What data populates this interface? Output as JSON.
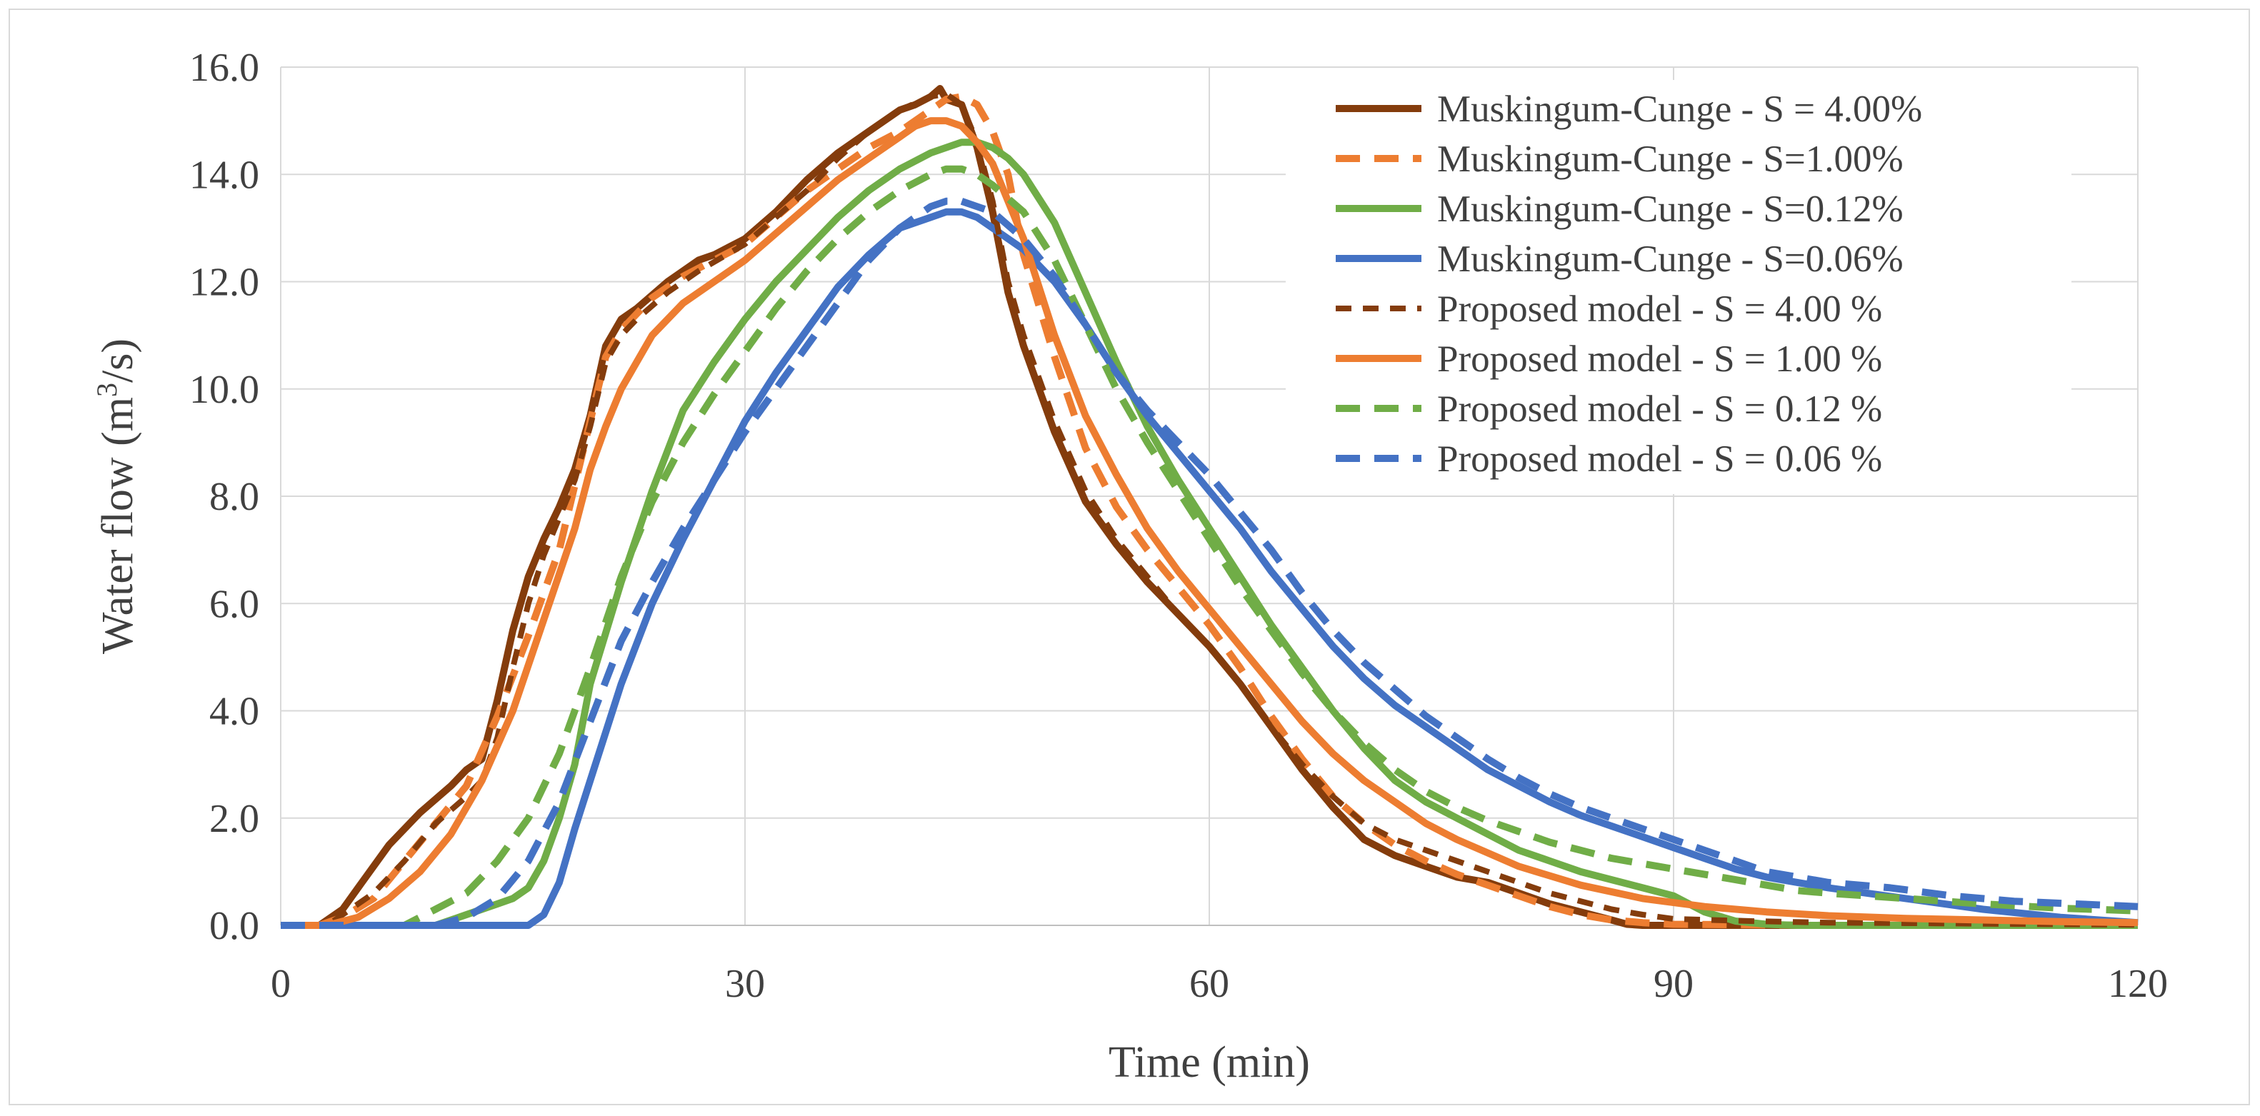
{
  "chart_data": {
    "type": "line",
    "xlabel": "Time (min)",
    "ylabel_prefix": "Water flow (m",
    "ylabel_sup": "3",
    "ylabel_suffix": "/s)",
    "xlim": [
      0,
      120
    ],
    "ylim": [
      0,
      16
    ],
    "x_ticks": [
      0,
      30,
      60,
      90,
      120
    ],
    "x_tick_labels": [
      "0",
      "30",
      "60",
      "90",
      "120"
    ],
    "y_ticks": [
      0,
      2,
      4,
      6,
      8,
      10,
      12,
      14,
      16
    ],
    "y_tick_labels": [
      "0.0",
      "2.0",
      "4.0",
      "6.0",
      "8.0",
      "10.0",
      "12.0",
      "14.0",
      "16.0"
    ],
    "grid": true,
    "legend_position": "top-right",
    "series": [
      {
        "name": "Muskingum-Cunge - S = 4.00%",
        "color": "#843c0c",
        "dash": "solid",
        "x": [
          0,
          2.5,
          4,
          5,
          7,
          9,
          11,
          12,
          13,
          14,
          15,
          16,
          17,
          18,
          19,
          20,
          21,
          22,
          23,
          25,
          27,
          28,
          30,
          32,
          34,
          36,
          38,
          40,
          41,
          42,
          42.6,
          43,
          44,
          45,
          46,
          47,
          48,
          50,
          52,
          54,
          56,
          58,
          60,
          62,
          64,
          66,
          68,
          70,
          72,
          74,
          76,
          78,
          80,
          82,
          84,
          86,
          87,
          88,
          90,
          100,
          110,
          120
        ],
        "y": [
          0,
          0,
          0.3,
          0.7,
          1.5,
          2.1,
          2.6,
          2.9,
          3.1,
          4.2,
          5.5,
          6.5,
          7.2,
          7.8,
          8.5,
          9.5,
          10.8,
          11.3,
          11.5,
          12.0,
          12.4,
          12.5,
          12.8,
          13.3,
          13.9,
          14.4,
          14.8,
          15.2,
          15.3,
          15.45,
          15.6,
          15.4,
          15.3,
          14.5,
          13.3,
          11.8,
          10.8,
          9.2,
          7.9,
          7.1,
          6.4,
          5.8,
          5.2,
          4.5,
          3.7,
          2.9,
          2.2,
          1.6,
          1.3,
          1.1,
          0.9,
          0.8,
          0.6,
          0.4,
          0.25,
          0.1,
          0.02,
          0,
          0,
          0,
          0,
          0
        ]
      },
      {
        "name": "Muskingum-Cunge - S=1.00%",
        "color": "#ed7d31",
        "dash": "long",
        "x": [
          0,
          2.5,
          4,
          6,
          8,
          10,
          12,
          14,
          16,
          18,
          20,
          21,
          22,
          24,
          26,
          28,
          30,
          32,
          34,
          36,
          38,
          40,
          42,
          43,
          44,
          45,
          46,
          47,
          48,
          50,
          52,
          54,
          56,
          58,
          60,
          62,
          64,
          66,
          68,
          70,
          72,
          74,
          76,
          78,
          80,
          82,
          84,
          86,
          88,
          90,
          100,
          110,
          120
        ],
        "y": [
          0,
          0,
          0.15,
          0.5,
          1.2,
          1.9,
          2.6,
          3.9,
          5.4,
          7.0,
          9.4,
          10.6,
          11.1,
          11.7,
          12.1,
          12.4,
          12.7,
          13.2,
          13.7,
          14.1,
          14.5,
          14.8,
          15.2,
          15.4,
          15.45,
          15.3,
          14.8,
          14.0,
          12.5,
          10.6,
          8.9,
          7.8,
          7.0,
          6.3,
          5.6,
          4.8,
          3.9,
          3.1,
          2.4,
          1.9,
          1.5,
          1.2,
          0.95,
          0.75,
          0.55,
          0.35,
          0.2,
          0.1,
          0.05,
          0.02,
          0,
          0,
          0
        ]
      },
      {
        "name": "Muskingum-Cunge - S=0.12%",
        "color": "#70ad47",
        "dash": "solid",
        "x": [
          0,
          10,
          12,
          14,
          15,
          16,
          17,
          18,
          19,
          20,
          22,
          24,
          26,
          28,
          30,
          32,
          34,
          36,
          38,
          40,
          42,
          44,
          45,
          46,
          47,
          48,
          50,
          52,
          54,
          56,
          58,
          60,
          62,
          64,
          66,
          68,
          70,
          72,
          74,
          76,
          78,
          80,
          82,
          84,
          86,
          88,
          90,
          92,
          94,
          96,
          98,
          100,
          110,
          120
        ],
        "y": [
          0,
          0,
          0.2,
          0.4,
          0.5,
          0.7,
          1.2,
          2.0,
          3.0,
          4.5,
          6.4,
          8.1,
          9.6,
          10.5,
          11.3,
          12.0,
          12.6,
          13.2,
          13.7,
          14.1,
          14.4,
          14.6,
          14.6,
          14.5,
          14.3,
          14.0,
          13.1,
          11.8,
          10.5,
          9.3,
          8.3,
          7.4,
          6.5,
          5.6,
          4.8,
          4.0,
          3.3,
          2.7,
          2.3,
          2.0,
          1.7,
          1.4,
          1.2,
          1.0,
          0.85,
          0.7,
          0.55,
          0.25,
          0.08,
          0.02,
          0,
          0,
          0,
          0
        ]
      },
      {
        "name": "Muskingum-Cunge - S=0.06%",
        "color": "#4472c4",
        "dash": "solid",
        "x": [
          0,
          16,
          17,
          18,
          19,
          20,
          22,
          24,
          26,
          28,
          30,
          32,
          34,
          36,
          38,
          40,
          42,
          43,
          44,
          45,
          46,
          48,
          50,
          52,
          54,
          56,
          58,
          60,
          62,
          64,
          66,
          68,
          70,
          72,
          74,
          76,
          78,
          80,
          82,
          84,
          86,
          88,
          90,
          92,
          94,
          96,
          98,
          100,
          105,
          110,
          115,
          120
        ],
        "y": [
          0,
          0,
          0.2,
          0.8,
          1.8,
          2.7,
          4.5,
          6.0,
          7.2,
          8.3,
          9.4,
          10.3,
          11.1,
          11.9,
          12.5,
          13.0,
          13.2,
          13.3,
          13.3,
          13.2,
          13.0,
          12.6,
          12.0,
          11.2,
          10.3,
          9.5,
          8.8,
          8.1,
          7.4,
          6.6,
          5.9,
          5.2,
          4.6,
          4.1,
          3.7,
          3.3,
          2.9,
          2.6,
          2.3,
          2.05,
          1.85,
          1.65,
          1.45,
          1.25,
          1.05,
          0.9,
          0.8,
          0.7,
          0.5,
          0.3,
          0.15,
          0.05
        ]
      },
      {
        "name": "Proposed model - S = 4.00 %",
        "color": "#843c0c",
        "dash": "short",
        "x": [
          0,
          3,
          4,
          6,
          8,
          10,
          12,
          13,
          14,
          15,
          16,
          17,
          18,
          19,
          20,
          21,
          22,
          23,
          25,
          27,
          30,
          32,
          34,
          36,
          38,
          40,
          42,
          43,
          44,
          45,
          46,
          47,
          48,
          50,
          52,
          54,
          56,
          58,
          60,
          62,
          64,
          66,
          68,
          70,
          72,
          74,
          76,
          78,
          80,
          82,
          84,
          86,
          88,
          90,
          95,
          100,
          110,
          120
        ],
        "y": [
          0,
          0,
          0.2,
          0.6,
          1.2,
          1.9,
          2.4,
          2.7,
          3.5,
          4.8,
          6.0,
          6.9,
          7.6,
          8.3,
          9.3,
          10.5,
          11.0,
          11.3,
          11.8,
          12.2,
          12.7,
          13.2,
          13.7,
          14.3,
          14.8,
          15.2,
          15.45,
          15.5,
          15.3,
          14.6,
          13.5,
          12.0,
          11.0,
          9.4,
          8.1,
          7.2,
          6.5,
          5.8,
          5.2,
          4.5,
          3.7,
          3.0,
          2.4,
          1.9,
          1.6,
          1.4,
          1.2,
          1.0,
          0.8,
          0.6,
          0.45,
          0.3,
          0.2,
          0.12,
          0.08,
          0.05,
          0.03,
          0.01
        ]
      },
      {
        "name": "Proposed model - S = 1.00 %",
        "color": "#ed7d31",
        "dash": "solid",
        "x": [
          0,
          3,
          5,
          7,
          9,
          11,
          13,
          15,
          17,
          19,
          20,
          21,
          22,
          24,
          26,
          28,
          30,
          32,
          34,
          36,
          38,
          40,
          41,
          42,
          43,
          44,
          45,
          46,
          48,
          50,
          52,
          54,
          56,
          58,
          60,
          62,
          64,
          66,
          68,
          70,
          72,
          74,
          76,
          78,
          80,
          84,
          88,
          92,
          96,
          100,
          105,
          110,
          115,
          120
        ],
        "y": [
          0,
          0,
          0.15,
          0.5,
          1.0,
          1.7,
          2.7,
          4.0,
          5.7,
          7.4,
          8.5,
          9.3,
          10.0,
          11.0,
          11.6,
          12.0,
          12.4,
          12.9,
          13.4,
          13.9,
          14.3,
          14.7,
          14.9,
          15.0,
          15.0,
          14.9,
          14.6,
          14.2,
          12.8,
          11.0,
          9.5,
          8.4,
          7.4,
          6.6,
          5.9,
          5.2,
          4.5,
          3.8,
          3.2,
          2.7,
          2.3,
          1.9,
          1.6,
          1.35,
          1.1,
          0.75,
          0.5,
          0.35,
          0.25,
          0.18,
          0.13,
          0.1,
          0.07,
          0.05
        ]
      },
      {
        "name": "Proposed model - S = 0.12 %",
        "color": "#70ad47",
        "dash": "long",
        "x": [
          0,
          8,
          10,
          12,
          14,
          16,
          18,
          20,
          22,
          24,
          26,
          28,
          30,
          32,
          34,
          36,
          38,
          40,
          42,
          43,
          44,
          45,
          46,
          48,
          50,
          52,
          54,
          56,
          58,
          60,
          62,
          64,
          66,
          68,
          70,
          72,
          74,
          76,
          78,
          80,
          82,
          84,
          86,
          88,
          90,
          92,
          94,
          96,
          98,
          100,
          105,
          110,
          115,
          120
        ],
        "y": [
          0,
          0,
          0.3,
          0.6,
          1.2,
          2.0,
          3.2,
          4.8,
          6.5,
          7.9,
          9.0,
          9.9,
          10.7,
          11.5,
          12.2,
          12.8,
          13.3,
          13.7,
          14.0,
          14.1,
          14.1,
          14.0,
          13.8,
          13.3,
          12.4,
          11.2,
          10.0,
          9.0,
          8.1,
          7.2,
          6.3,
          5.5,
          4.7,
          4.0,
          3.4,
          2.9,
          2.5,
          2.2,
          1.95,
          1.75,
          1.55,
          1.4,
          1.25,
          1.15,
          1.05,
          0.95,
          0.85,
          0.75,
          0.65,
          0.6,
          0.5,
          0.4,
          0.32,
          0.27
        ]
      },
      {
        "name": "Proposed model - S = 0.06 %",
        "color": "#4472c4",
        "dash": "long",
        "x": [
          0,
          10,
          12,
          14,
          16,
          18,
          20,
          22,
          24,
          26,
          28,
          30,
          32,
          34,
          36,
          38,
          40,
          42,
          43,
          44,
          45,
          46,
          48,
          50,
          52,
          54,
          56,
          58,
          60,
          62,
          64,
          66,
          68,
          70,
          72,
          74,
          76,
          78,
          80,
          82,
          84,
          86,
          88,
          90,
          92,
          94,
          96,
          98,
          100,
          104,
          108,
          112,
          116,
          120
        ],
        "y": [
          0,
          0,
          0.15,
          0.5,
          1.2,
          2.3,
          3.8,
          5.3,
          6.4,
          7.4,
          8.3,
          9.2,
          10.0,
          10.8,
          11.6,
          12.4,
          13.0,
          13.4,
          13.5,
          13.5,
          13.4,
          13.3,
          12.8,
          12.1,
          11.2,
          10.3,
          9.6,
          9.0,
          8.4,
          7.7,
          7.0,
          6.2,
          5.5,
          4.9,
          4.4,
          3.9,
          3.5,
          3.1,
          2.75,
          2.45,
          2.2,
          2.0,
          1.8,
          1.6,
          1.4,
          1.2,
          1.0,
          0.9,
          0.8,
          0.7,
          0.55,
          0.45,
          0.4,
          0.35
        ]
      }
    ]
  }
}
